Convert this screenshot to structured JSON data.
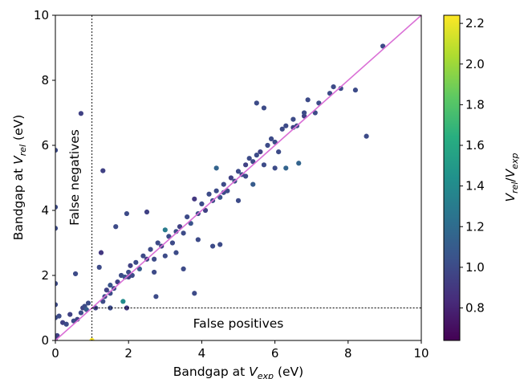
{
  "chart_data": {
    "type": "scatter",
    "xlabel": {
      "main": "Bandgap at ",
      "var": "V",
      "sub": "exp",
      "unit": " (eV)"
    },
    "ylabel": {
      "main": "Bandgap at ",
      "var": "V",
      "sub": "rel",
      "unit": " (eV)"
    },
    "xlim": [
      0,
      10
    ],
    "ylim": [
      0,
      10
    ],
    "xticks": [
      "0",
      "2",
      "4",
      "6",
      "8",
      "10"
    ],
    "yticks": [
      "0",
      "2",
      "4",
      "6",
      "8",
      "10"
    ],
    "grid": false,
    "diagonal_color": "#da70d6",
    "threshold_lines": {
      "x": 1,
      "y": 1
    },
    "annotations": {
      "false_negatives": "False negatives",
      "false_positives": "False positives"
    },
    "colorbar": {
      "label": {
        "num_var": "V",
        "num_sub": "rel",
        "slash": "/",
        "den_var": "V",
        "den_sub": "exp"
      },
      "range": [
        0.64,
        2.24
      ],
      "ticks": [
        "0.8",
        "1.0",
        "1.2",
        "1.4",
        "1.6",
        "1.8",
        "2.0",
        "2.2"
      ],
      "colormap": "viridis"
    },
    "points": [
      [
        0.0,
        0.05,
        1.0
      ],
      [
        0.0,
        0.7,
        1.0
      ],
      [
        0.0,
        1.1,
        1.0
      ],
      [
        0.0,
        1.75,
        1.0
      ],
      [
        0.0,
        3.45,
        1.0
      ],
      [
        0.0,
        4.1,
        1.0
      ],
      [
        0.0,
        5.85,
        1.0
      ],
      [
        0.05,
        0.15,
        0.95
      ],
      [
        0.1,
        0.75,
        1.0
      ],
      [
        0.2,
        0.55,
        0.95
      ],
      [
        0.3,
        0.5,
        1.0
      ],
      [
        0.4,
        0.8,
        0.95
      ],
      [
        0.5,
        0.6,
        1.0
      ],
      [
        0.6,
        0.65,
        0.95
      ],
      [
        0.55,
        2.05,
        1.0
      ],
      [
        0.7,
        6.98,
        0.95
      ],
      [
        0.7,
        0.85,
        1.0
      ],
      [
        0.75,
        1.0,
        0.95
      ],
      [
        0.8,
        1.05,
        1.0
      ],
      [
        0.85,
        0.95,
        1.1
      ],
      [
        0.9,
        1.15,
        1.0
      ],
      [
        1.0,
        0.0,
        2.24
      ],
      [
        1.1,
        1.0,
        0.95
      ],
      [
        1.2,
        2.25,
        1.0
      ],
      [
        1.25,
        2.7,
        0.9
      ],
      [
        1.3,
        5.22,
        0.95
      ],
      [
        1.3,
        1.2,
        1.0
      ],
      [
        1.35,
        1.35,
        1.0
      ],
      [
        1.4,
        1.55,
        0.95
      ],
      [
        1.5,
        1.0,
        1.0
      ],
      [
        1.5,
        1.7,
        1.05
      ],
      [
        1.6,
        1.6,
        1.0
      ],
      [
        1.65,
        3.5,
        1.0
      ],
      [
        1.7,
        1.8,
        0.95
      ],
      [
        1.8,
        2.0,
        1.0
      ],
      [
        1.85,
        1.2,
        1.4
      ],
      [
        1.9,
        1.95,
        1.05
      ],
      [
        1.95,
        1.0,
        0.9
      ],
      [
        1.95,
        3.9,
        1.0
      ],
      [
        2.0,
        2.1,
        1.0
      ],
      [
        2.05,
        2.3,
        0.95
      ],
      [
        2.1,
        2.0,
        1.0
      ],
      [
        2.2,
        2.4,
        1.0
      ],
      [
        2.3,
        2.2,
        1.1
      ],
      [
        2.4,
        2.6,
        1.0
      ],
      [
        2.5,
        2.5,
        0.95
      ],
      [
        2.5,
        3.95,
        0.95
      ],
      [
        2.6,
        2.8,
        1.0
      ],
      [
        2.7,
        2.5,
        1.0
      ],
      [
        2.7,
        2.1,
        1.0
      ],
      [
        2.75,
        1.35,
        1.0
      ],
      [
        2.8,
        3.0,
        1.0
      ],
      [
        2.9,
        2.9,
        0.95
      ],
      [
        3.0,
        3.4,
        1.3
      ],
      [
        3.0,
        2.6,
        1.0
      ],
      [
        3.1,
        3.2,
        1.0
      ],
      [
        3.2,
        3.0,
        1.0
      ],
      [
        3.3,
        2.7,
        1.0
      ],
      [
        3.4,
        3.5,
        0.95
      ],
      [
        3.5,
        3.3,
        1.0
      ],
      [
        3.5,
        2.2,
        1.0
      ],
      [
        3.6,
        3.8,
        1.0
      ],
      [
        3.7,
        3.6,
        1.05
      ],
      [
        3.8,
        4.35,
        0.9
      ],
      [
        3.8,
        1.45,
        1.0
      ],
      [
        3.9,
        3.9,
        1.0
      ],
      [
        3.9,
        3.1,
        1.0
      ],
      [
        4.0,
        4.2,
        1.0
      ],
      [
        4.1,
        4.0,
        0.95
      ],
      [
        4.2,
        4.5,
        1.0
      ],
      [
        4.3,
        4.3,
        1.0
      ],
      [
        4.3,
        2.9,
        1.0
      ],
      [
        4.4,
        4.6,
        1.0
      ],
      [
        4.5,
        4.4,
        1.05
      ],
      [
        4.5,
        2.95,
        1.0
      ],
      [
        4.6,
        4.8,
        1.0
      ],
      [
        4.7,
        4.6,
        1.0
      ],
      [
        4.8,
        5.0,
        0.95
      ],
      [
        4.9,
        4.9,
        1.0
      ],
      [
        4.4,
        5.3,
        1.15
      ],
      [
        5.0,
        5.2,
        1.0
      ],
      [
        5.0,
        4.3,
        1.0
      ],
      [
        5.1,
        5.1,
        1.0
      ],
      [
        5.2,
        5.4,
        0.95
      ],
      [
        5.3,
        5.6,
        1.0
      ],
      [
        5.4,
        5.5,
        1.0
      ],
      [
        5.4,
        4.8,
        1.1
      ],
      [
        5.5,
        5.7,
        1.0
      ],
      [
        5.5,
        7.3,
        1.0
      ],
      [
        5.6,
        5.8,
        0.95
      ],
      [
        5.7,
        5.4,
        1.0
      ],
      [
        5.7,
        7.15,
        1.0
      ],
      [
        5.8,
        6.0,
        1.0
      ],
      [
        5.9,
        6.2,
        1.0
      ],
      [
        6.0,
        6.1,
        1.0
      ],
      [
        6.1,
        5.8,
        1.0
      ],
      [
        6.2,
        6.5,
        1.0
      ],
      [
        6.3,
        6.6,
        1.0
      ],
      [
        6.0,
        5.3,
        1.0
      ],
      [
        6.3,
        5.3,
        1.15
      ],
      [
        6.5,
        6.8,
        1.0
      ],
      [
        6.6,
        6.6,
        1.0
      ],
      [
        6.65,
        5.45,
        1.15
      ],
      [
        6.8,
        6.9,
        0.95
      ],
      [
        6.9,
        7.4,
        1.0
      ],
      [
        7.1,
        7.0,
        1.0
      ],
      [
        7.2,
        7.3,
        1.0
      ],
      [
        7.6,
        7.8,
        1.0
      ],
      [
        7.8,
        7.75,
        1.0
      ],
      [
        8.2,
        7.7,
        1.0
      ],
      [
        8.5,
        6.28,
        1.0
      ],
      [
        8.95,
        9.05,
        1.0
      ],
      [
        6.5,
        6.55,
        0.95
      ],
      [
        5.2,
        5.05,
        1.0
      ],
      [
        4.6,
        4.55,
        1.0
      ],
      [
        3.3,
        3.35,
        1.0
      ],
      [
        2.0,
        1.95,
        0.95
      ],
      [
        1.5,
        1.45,
        1.0
      ],
      [
        6.8,
        7.0,
        1.0
      ],
      [
        7.5,
        7.6,
        1.0
      ]
    ]
  }
}
